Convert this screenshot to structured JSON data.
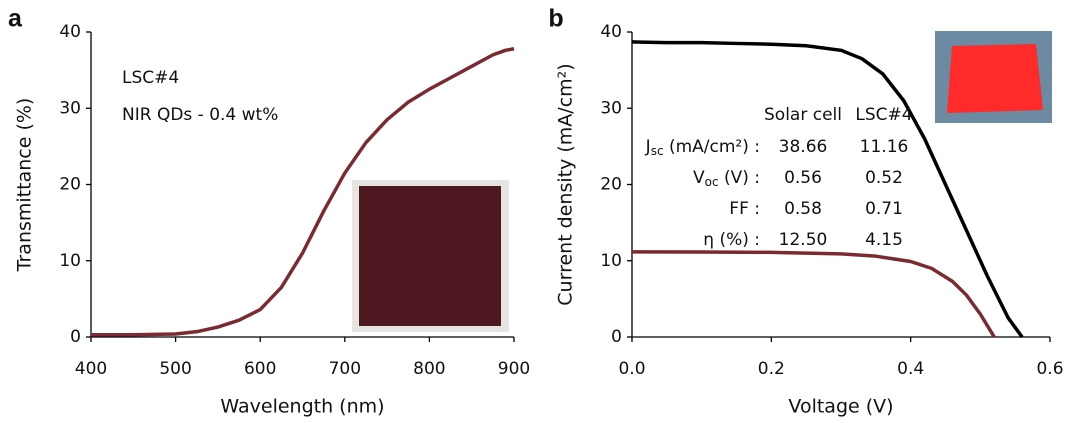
{
  "chart_data": [
    {
      "type": "line",
      "panel": "a",
      "x_label": "Wavelength (nm)",
      "y_label": "Transmittance (%)",
      "annotations": [
        "LSC#4",
        "NIR QDs - 0.4 wt%"
      ],
      "x": [
        400,
        450,
        500,
        525,
        550,
        575,
        600,
        625,
        650,
        675,
        700,
        725,
        750,
        775,
        800,
        825,
        850,
        875,
        890,
        900
      ],
      "values": [
        0.3,
        0.3,
        0.4,
        0.7,
        1.3,
        2.2,
        3.6,
        6.5,
        11,
        16.5,
        21.5,
        25.5,
        28.5,
        30.8,
        32.5,
        34,
        35.5,
        37,
        37.6,
        37.8
      ],
      "color": "#7a2a30",
      "xlim": [
        400,
        900
      ],
      "xticks": [
        400,
        500,
        600,
        700,
        800,
        900
      ],
      "ylim": [
        0,
        40
      ],
      "yticks": [
        0,
        10,
        20,
        30,
        40
      ]
    },
    {
      "type": "line",
      "panel": "b",
      "x_label": "Voltage (V)",
      "y_label": "Current density (mA/cm²)",
      "series": [
        {
          "name": "Solar cell",
          "color": "#000000",
          "x": [
            0,
            0.05,
            0.1,
            0.15,
            0.2,
            0.25,
            0.3,
            0.33,
            0.36,
            0.39,
            0.42,
            0.45,
            0.48,
            0.51,
            0.54,
            0.56
          ],
          "values": [
            38.7,
            38.6,
            38.6,
            38.5,
            38.4,
            38.2,
            37.6,
            36.5,
            34.5,
            31,
            26,
            20,
            14,
            8,
            2.5,
            0
          ]
        },
        {
          "name": "LSC#4",
          "color": "#7a2a30",
          "x": [
            0,
            0.1,
            0.2,
            0.3,
            0.35,
            0.4,
            0.43,
            0.46,
            0.48,
            0.5,
            0.52
          ],
          "values": [
            11.16,
            11.15,
            11.1,
            10.9,
            10.6,
            9.9,
            9,
            7.3,
            5.5,
            3,
            0
          ]
        }
      ],
      "table": {
        "rows": [
          {
            "symbol": "J",
            "sub": "sc",
            "unit": " (mA/cm²) :",
            "values": [
              "38.66",
              "11.16"
            ]
          },
          {
            "symbol": "V",
            "sub": "oc",
            "unit": " (V) :",
            "values": [
              "0.56",
              "0.52"
            ]
          },
          {
            "symbol": "FF :",
            "values": [
              "0.58",
              "0.71"
            ]
          },
          {
            "symbol": "η (%) :",
            "values": [
              "12.50",
              "4.15"
            ]
          }
        ]
      },
      "xlim": [
        0,
        0.6
      ],
      "xticks": [
        {
          "value": 0,
          "label": "0.0"
        },
        0.2,
        0.4,
        0.6
      ],
      "ylim": [
        0,
        40
      ],
      "yticks": [
        0,
        10,
        20,
        30,
        40
      ]
    }
  ]
}
